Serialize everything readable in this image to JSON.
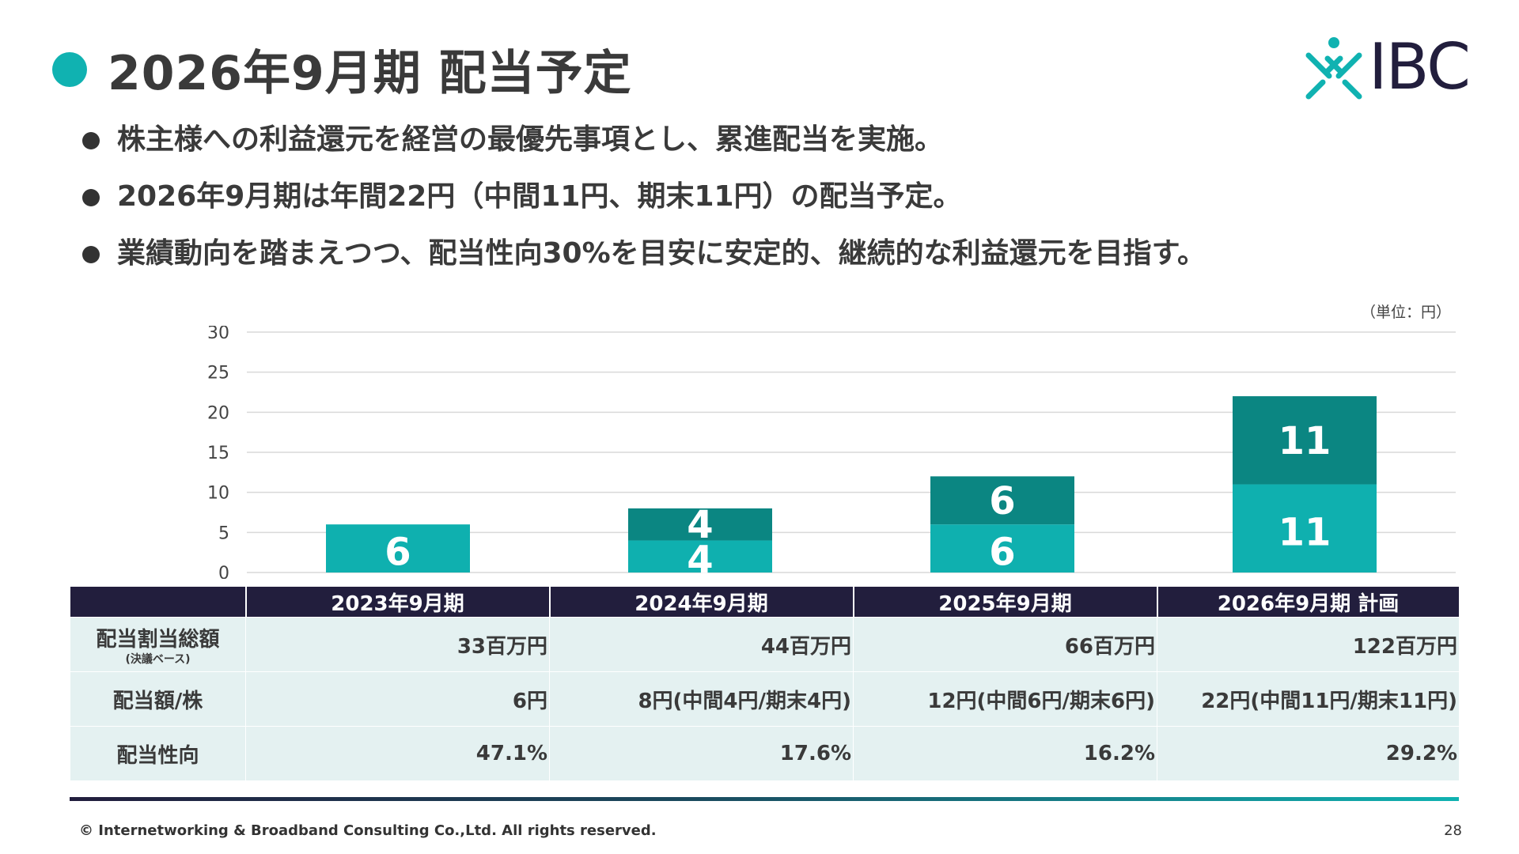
{
  "header": {
    "title": "2026年9月期 配当予定",
    "logo_text": "IBC"
  },
  "bullets": [
    "株主様への利益還元を経営の最優先事項とし、累進配当を実施。",
    "2026年9月期は年間22円（中間11円、期末11円）の配当予定。",
    "業績動向を踏まえつつ、配当性向30%を目安に安定的、継続的な利益還元を目指す。"
  ],
  "unit_label": "（単位：円）",
  "colors": {
    "interim": "#0fb0af",
    "year_end": "#0b8682",
    "header_bg": "#221e3d",
    "cell_bg": "#e4f1f1",
    "accent": "#10b2b1"
  },
  "chart_data": {
    "type": "bar",
    "stacked": true,
    "categories": [
      "2023年9月期",
      "2024年9月期",
      "2025年9月期",
      "2026年9月期 計画"
    ],
    "series": [
      {
        "values": [
          6,
          4,
          6,
          11
        ]
      },
      {
        "values": [
          0,
          4,
          6,
          11
        ]
      }
    ],
    "bar_labels": [
      [
        "6",
        null
      ],
      [
        "4",
        "4"
      ],
      [
        "6",
        "6"
      ],
      [
        "11",
        "11"
      ]
    ],
    "yticks": [
      "0",
      "5",
      "10",
      "15",
      "20",
      "25",
      "30"
    ],
    "ylim": [
      0,
      30
    ],
    "grid": true
  },
  "table": {
    "headers": [
      "",
      "2023年9月期",
      "2024年9月期",
      "2025年9月期",
      "2026年9月期 計画"
    ],
    "rows": [
      {
        "label": "配当割当総額",
        "sublabel": "(決議ベース)",
        "cells": [
          "33百万円",
          "44百万円",
          "66百万円",
          "122百万円"
        ]
      },
      {
        "label": "配当額/株",
        "sublabel": "",
        "cells": [
          "6円",
          "8円(中間4円/期末4円)",
          "12円(中間6円/期末6円)",
          "22円(中間11円/期末11円)"
        ]
      },
      {
        "label": "配当性向",
        "sublabel": "",
        "cells": [
          "47.1%",
          "17.6%",
          "16.2%",
          "29.2%"
        ]
      }
    ]
  },
  "footer": {
    "copyright": "© Internetworking & Broadband Consulting Co.,Ltd. All rights reserved.",
    "page_number": "28"
  }
}
